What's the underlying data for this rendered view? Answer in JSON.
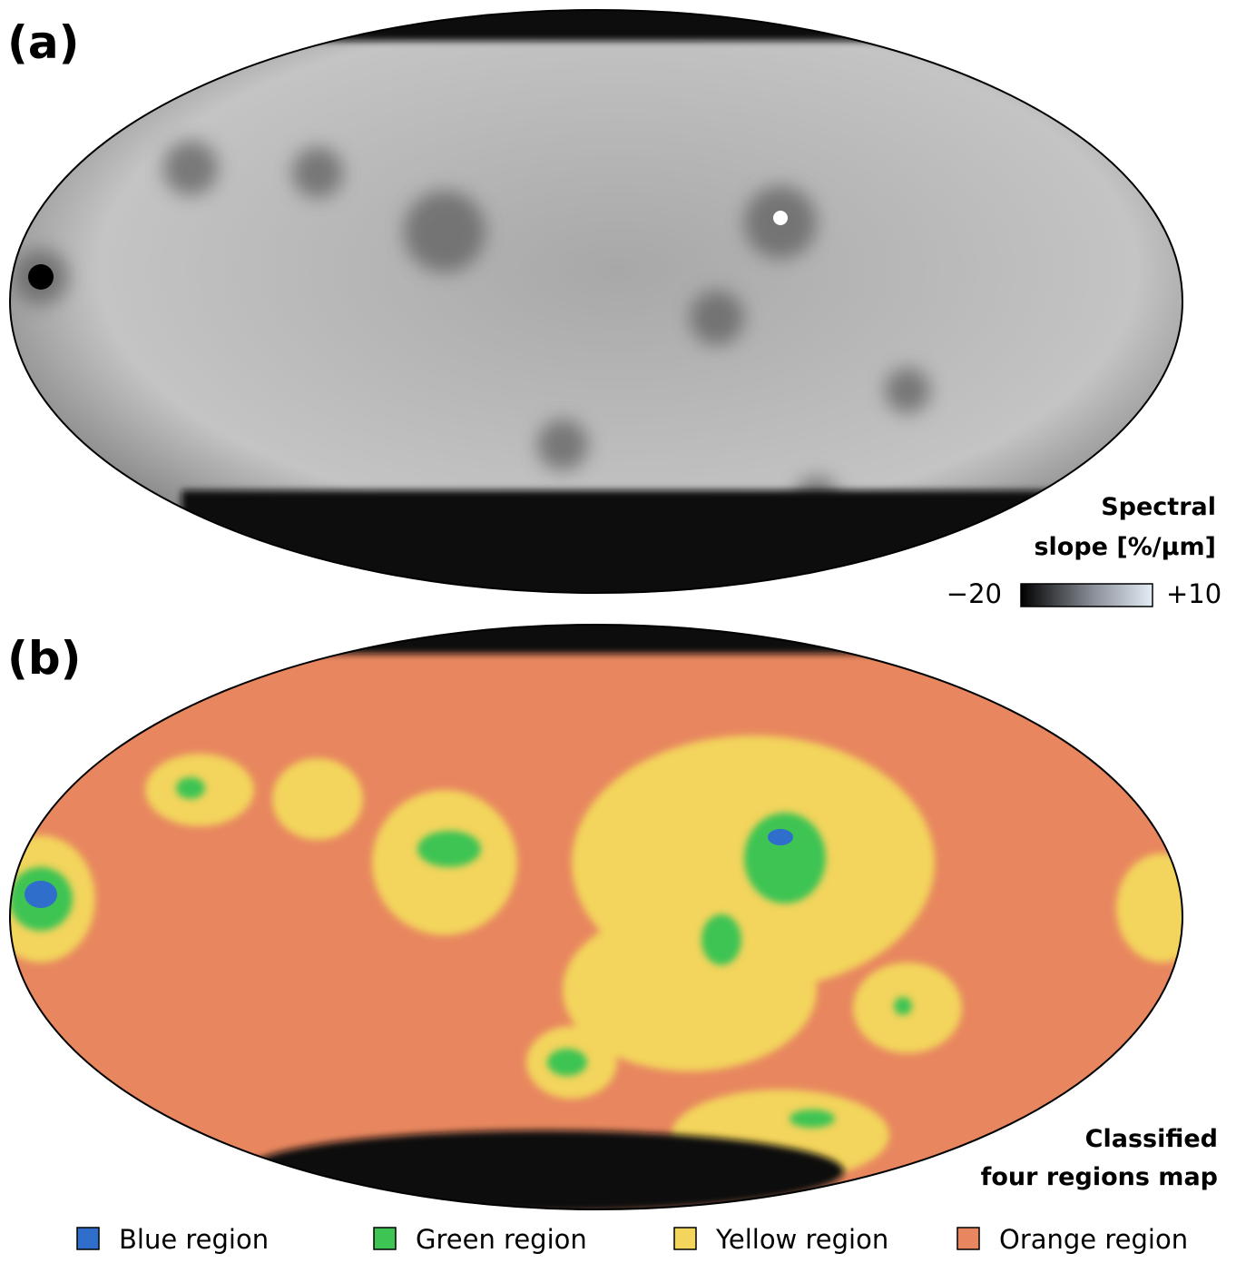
{
  "panel_a": {
    "label": "(a)",
    "title_line1": "Spectral",
    "title_line2": "slope [%/µm]",
    "colorbar_min": "−20",
    "colorbar_max": "+10"
  },
  "panel_b": {
    "label": "(b)",
    "title_line1": "Classified",
    "title_line2": "four regions map"
  },
  "legend": [
    {
      "label": "Blue region",
      "color": "#2f6fcb"
    },
    {
      "label": "Green region",
      "color": "#3ec452"
    },
    {
      "label": "Yellow region",
      "color": "#f3d45c"
    },
    {
      "label": "Orange region",
      "color": "#e8875f"
    }
  ]
}
